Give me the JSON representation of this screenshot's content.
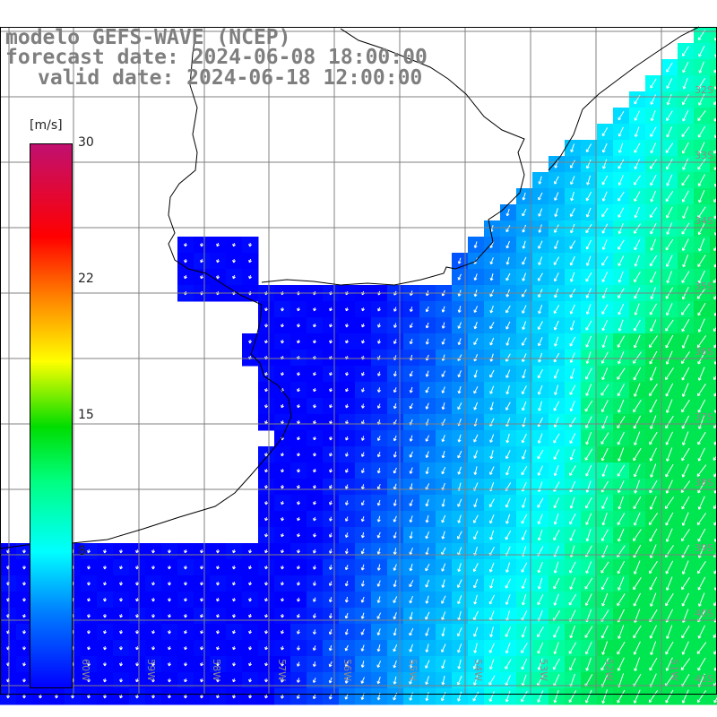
{
  "title": {
    "line1": "modelo GEFS-WAVE (NCEP)",
    "line2": "forecast date: 2024-06-08 18:00:00",
    "line3": "valid date: 2024-06-18 12:00:00"
  },
  "colorbar": {
    "unit": "[m/s]",
    "ticks": [
      "30",
      "22",
      "15",
      "8"
    ],
    "tick_values": [
      30,
      22,
      15,
      8
    ],
    "range": [
      0,
      30
    ],
    "colors": [
      "#0000ff",
      "#0080ff",
      "#00ffff",
      "#00ff80",
      "#00dd00",
      "#ffff00",
      "#ff8000",
      "#ff0000",
      "#c01070"
    ]
  },
  "map": {
    "lon_labels": [
      "60W",
      "59W",
      "58W",
      "57W",
      "56W",
      "55W",
      "54W",
      "53W",
      "52W",
      "51W"
    ],
    "lat_labels": [
      "32S",
      "33S",
      "34S",
      "35S",
      "36S",
      "37S",
      "38S",
      "39S",
      "40S",
      "41S"
    ],
    "land_color": "#ffffff",
    "grid_color": "#808080",
    "arrow_color": "#ffffff",
    "field": "wind speed with direction arrows"
  }
}
